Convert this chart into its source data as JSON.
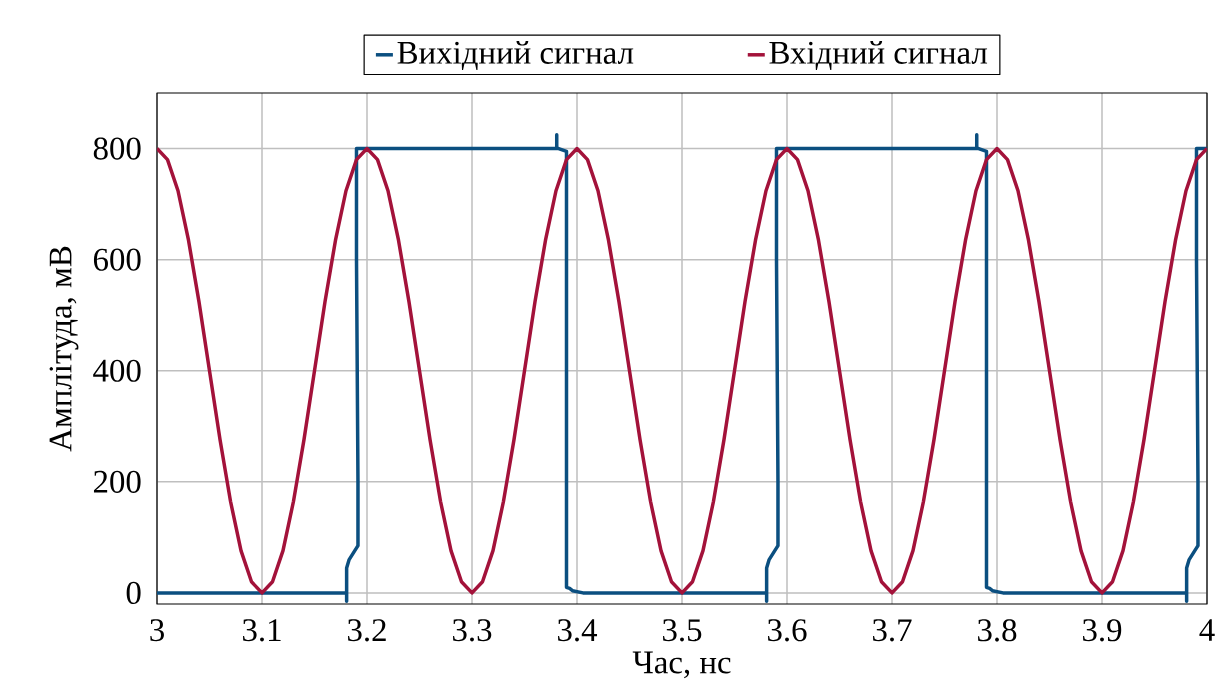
{
  "chart_data": {
    "type": "line",
    "xlabel": "Час, нс",
    "ylabel": "Амплітуда, мВ",
    "xlim": [
      3,
      4
    ],
    "ylim": [
      -20,
      900
    ],
    "xticks": [
      3,
      3.1,
      3.2,
      3.3,
      3.4,
      3.5,
      3.6,
      3.7,
      3.8,
      3.9,
      4
    ],
    "yticks": [
      0,
      200,
      400,
      600,
      800
    ],
    "grid": true,
    "legend": "top",
    "marker": "none",
    "line_style": "solid",
    "series": [
      {
        "name": "Вихідний сигнал",
        "color": "#0b4f80",
        "x": [
          3,
          3.18,
          3.1806,
          3.1806,
          3.1806,
          3.183,
          3.1914,
          3.1914,
          3.19,
          3.19,
          3.371,
          3.3807,
          3.3807,
          3.3807,
          3.3825,
          3.39,
          3.39,
          3.393,
          3.3957,
          3.4057,
          3.58,
          3.5806,
          3.5806,
          3.5806,
          3.583,
          3.5914,
          3.5914,
          3.59,
          3.59,
          3.771,
          3.7807,
          3.7807,
          3.7807,
          3.7825,
          3.79,
          3.79,
          3.793,
          3.7957,
          3.8057,
          3.98,
          3.9806,
          3.9806,
          3.9806,
          3.983,
          3.9914,
          3.9914,
          3.99,
          3.99,
          4
        ],
        "values": [
          0,
          0,
          0,
          -15,
          45,
          60,
          85,
          200,
          600,
          800,
          800,
          800,
          825,
          800,
          800,
          795,
          10,
          8,
          4,
          0,
          0,
          0,
          -15,
          45,
          60,
          85,
          200,
          600,
          800,
          800,
          800,
          825,
          800,
          800,
          795,
          10,
          8,
          4,
          0,
          0,
          0,
          -15,
          45,
          60,
          85,
          200,
          600,
          800,
          800
        ]
      },
      {
        "name": "Вхідний сигнал",
        "color": "#a3123a",
        "x": [
          3,
          3.01,
          3.02,
          3.03,
          3.04,
          3.05,
          3.06,
          3.07,
          3.08,
          3.09,
          3.1,
          3.11,
          3.12,
          3.13,
          3.14,
          3.15,
          3.16,
          3.17,
          3.18,
          3.19,
          3.2,
          3.21,
          3.22,
          3.23,
          3.24,
          3.25,
          3.26,
          3.27,
          3.28,
          3.29,
          3.3,
          3.31,
          3.32,
          3.33,
          3.34,
          3.35,
          3.36,
          3.37,
          3.38,
          3.39,
          3.4,
          3.41,
          3.42,
          3.43,
          3.44,
          3.45,
          3.46,
          3.47,
          3.48,
          3.49,
          3.5,
          3.51,
          3.52,
          3.53,
          3.54,
          3.55,
          3.56,
          3.57,
          3.58,
          3.59,
          3.6,
          3.61,
          3.62,
          3.63,
          3.64,
          3.65,
          3.66,
          3.67,
          3.68,
          3.69,
          3.7,
          3.71,
          3.72,
          3.73,
          3.74,
          3.75,
          3.76,
          3.77,
          3.78,
          3.79,
          3.8,
          3.81,
          3.82,
          3.83,
          3.84,
          3.85,
          3.86,
          3.87,
          3.88,
          3.89,
          3.9,
          3.91,
          3.92,
          3.93,
          3.94,
          3.95,
          3.96,
          3.97,
          3.98,
          3.99,
          4
        ],
        "values": [
          800,
          780,
          724,
          635,
          524,
          400,
          276,
          165,
          76,
          20,
          0,
          20,
          76,
          165,
          276,
          400,
          524,
          635,
          724,
          780,
          800,
          780,
          724,
          635,
          524,
          400,
          276,
          165,
          76,
          20,
          0,
          20,
          76,
          165,
          276,
          400,
          524,
          635,
          724,
          780,
          800,
          780,
          724,
          635,
          524,
          400,
          276,
          165,
          76,
          20,
          0,
          20,
          76,
          165,
          276,
          400,
          524,
          635,
          724,
          780,
          800,
          780,
          724,
          635,
          524,
          400,
          276,
          165,
          76,
          20,
          0,
          20,
          76,
          165,
          276,
          400,
          524,
          635,
          724,
          780,
          800,
          780,
          724,
          635,
          524,
          400,
          276,
          165,
          76,
          20,
          0,
          20,
          76,
          165,
          276,
          400,
          524,
          635,
          724,
          780,
          800
        ]
      }
    ]
  }
}
